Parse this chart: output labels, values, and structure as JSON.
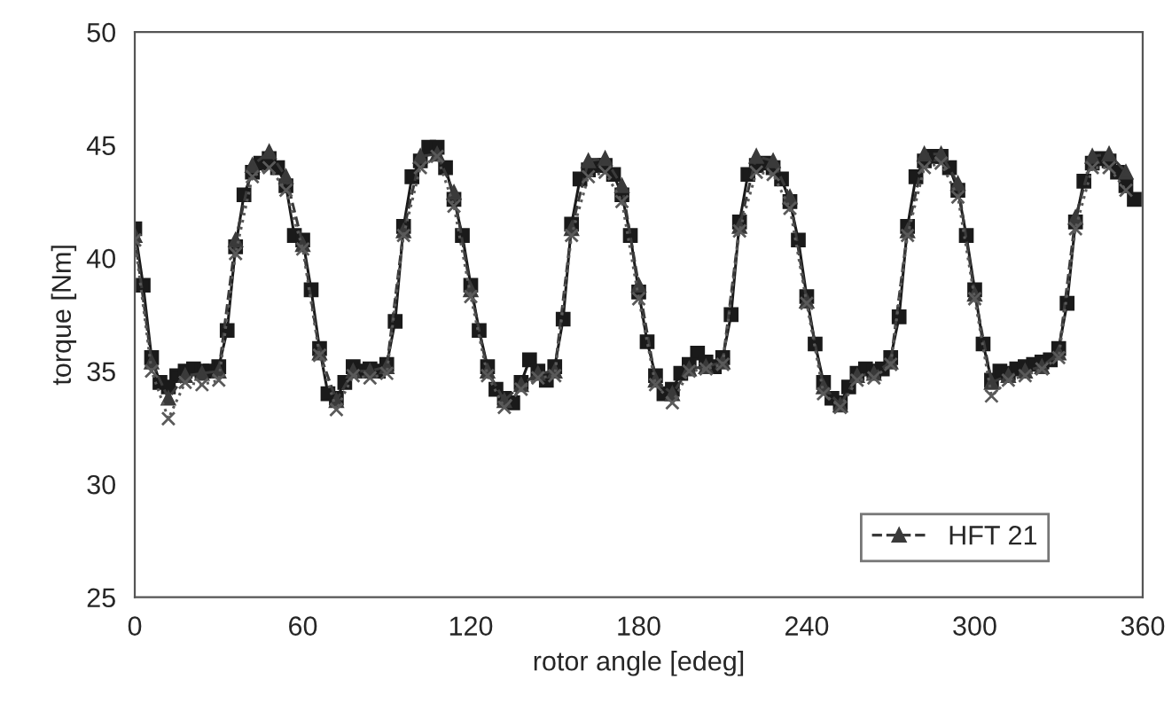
{
  "chart_data": {
    "type": "line",
    "xlabel": "rotor angle [edeg]",
    "ylabel": "torque [Nm]",
    "xlim": [
      0,
      360
    ],
    "xticks": [
      0,
      60,
      120,
      180,
      240,
      300,
      360
    ],
    "ylim": [
      25,
      50
    ],
    "yticks": [
      25,
      30,
      35,
      40,
      45,
      50
    ],
    "grid": false,
    "legend": "bottom right",
    "series": [
      {
        "color": "#1a1a1a",
        "marker": "square",
        "line_style": "solid",
        "x": [
          0,
          3,
          6,
          9,
          12,
          15,
          18,
          21,
          24,
          27,
          30,
          33,
          36,
          39,
          42,
          45,
          48,
          51,
          54,
          57,
          60,
          63,
          66,
          69,
          72,
          75,
          78,
          81,
          84,
          87,
          90,
          93,
          96,
          99,
          102,
          105,
          108,
          111,
          114,
          117,
          120,
          123,
          126,
          129,
          132,
          135,
          138,
          141,
          144,
          147,
          150,
          153,
          156,
          159,
          162,
          165,
          168,
          171,
          174,
          177,
          180,
          183,
          186,
          189,
          192,
          195,
          198,
          201,
          204,
          207,
          210,
          213,
          216,
          219,
          222,
          225,
          228,
          231,
          234,
          237,
          240,
          243,
          246,
          249,
          252,
          255,
          258,
          261,
          264,
          267,
          270,
          273,
          276,
          279,
          282,
          285,
          288,
          291,
          294,
          297,
          300,
          303,
          306,
          309,
          312,
          315,
          318,
          321,
          324,
          327,
          330,
          333,
          336,
          339,
          342,
          345,
          348,
          351,
          354,
          357
        ],
        "values": [
          41.3,
          38.8,
          35.6,
          34.5,
          34.3,
          34.8,
          35.0,
          35.1,
          35.0,
          35.0,
          35.2,
          36.8,
          40.5,
          42.8,
          43.8,
          44.2,
          44.4,
          44.0,
          43.2,
          41.0,
          40.8,
          38.6,
          36.0,
          34.0,
          33.8,
          34.5,
          35.2,
          35.0,
          35.1,
          35.0,
          35.3,
          37.2,
          41.4,
          43.6,
          44.3,
          44.9,
          44.9,
          44.0,
          42.6,
          41.0,
          38.8,
          36.8,
          35.2,
          34.2,
          33.8,
          33.6,
          34.5,
          35.5,
          35.0,
          34.6,
          35.2,
          37.3,
          41.5,
          43.5,
          43.9,
          44.1,
          44.1,
          43.7,
          42.8,
          41.0,
          38.5,
          36.3,
          34.8,
          34.0,
          34.2,
          34.9,
          35.3,
          35.8,
          35.4,
          35.2,
          35.6,
          37.5,
          41.6,
          43.7,
          44.1,
          44.2,
          44.0,
          43.5,
          42.5,
          40.8,
          38.3,
          36.2,
          34.5,
          33.8,
          33.6,
          34.3,
          34.9,
          35.1,
          35.0,
          35.1,
          35.6,
          37.4,
          41.4,
          43.6,
          44.3,
          44.5,
          44.5,
          44.0,
          43.0,
          41.0,
          38.6,
          36.2,
          34.6,
          35.0,
          34.9,
          35.1,
          35.2,
          35.3,
          35.4,
          35.5,
          36.0,
          38.0,
          41.6,
          43.4,
          44.2,
          44.4,
          44.3,
          43.8,
          43.2,
          42.6
        ]
      },
      {
        "name": "HFT 21",
        "color": "#3a3a3a",
        "marker": "triangle",
        "line_style": "dashed",
        "x": [
          0,
          6,
          12,
          18,
          24,
          30,
          36,
          42,
          48,
          54,
          60,
          66,
          72,
          78,
          84,
          90,
          96,
          102,
          108,
          114,
          120,
          126,
          132,
          138,
          144,
          150,
          156,
          162,
          168,
          174,
          180,
          186,
          192,
          198,
          204,
          210,
          216,
          222,
          228,
          234,
          240,
          246,
          252,
          258,
          264,
          270,
          276,
          282,
          288,
          294,
          300,
          306,
          312,
          318,
          324,
          330,
          336,
          342,
          348,
          354
        ],
        "values": [
          41.0,
          35.4,
          33.8,
          34.8,
          34.9,
          35.0,
          40.8,
          44.1,
          44.7,
          43.6,
          40.6,
          35.8,
          33.7,
          35.0,
          35.0,
          35.2,
          41.2,
          44.5,
          44.6,
          42.9,
          38.6,
          35.0,
          33.7,
          34.4,
          34.9,
          35.0,
          41.3,
          44.3,
          44.4,
          43.2,
          38.8,
          34.6,
          34.0,
          35.1,
          35.2,
          35.4,
          41.4,
          44.5,
          44.3,
          42.7,
          38.1,
          34.3,
          33.5,
          34.8,
          34.9,
          35.4,
          41.2,
          44.6,
          44.6,
          43.3,
          38.4,
          34.5,
          34.8,
          35.0,
          35.2,
          35.8,
          41.8,
          44.5,
          44.6,
          43.8
        ]
      },
      {
        "color": "#5a5a5a",
        "marker": "cross",
        "line_style": "dotted",
        "x": [
          0,
          6,
          12,
          18,
          24,
          30,
          36,
          42,
          48,
          54,
          60,
          66,
          72,
          78,
          84,
          90,
          96,
          102,
          108,
          114,
          120,
          126,
          132,
          138,
          144,
          150,
          156,
          162,
          168,
          174,
          180,
          186,
          192,
          198,
          204,
          210,
          216,
          222,
          228,
          234,
          240,
          246,
          252,
          258,
          264,
          270,
          276,
          282,
          288,
          294,
          300,
          306,
          312,
          318,
          324,
          330,
          336,
          342,
          348,
          354
        ],
        "values": [
          40.8,
          35.0,
          32.9,
          34.5,
          34.4,
          34.6,
          40.2,
          43.6,
          44.0,
          43.0,
          40.4,
          35.7,
          33.3,
          34.8,
          34.7,
          34.9,
          41.0,
          44.0,
          44.5,
          42.3,
          38.3,
          34.8,
          33.4,
          34.2,
          34.7,
          34.8,
          41.0,
          43.6,
          43.8,
          42.5,
          38.2,
          34.4,
          33.6,
          35.0,
          35.1,
          35.3,
          41.2,
          43.8,
          43.7,
          42.2,
          38.0,
          34.0,
          33.4,
          34.6,
          34.7,
          35.3,
          41.0,
          44.0,
          44.2,
          42.7,
          38.2,
          33.9,
          34.6,
          34.8,
          35.1,
          35.6,
          41.3,
          44.0,
          44.0,
          43.0
        ]
      }
    ]
  }
}
